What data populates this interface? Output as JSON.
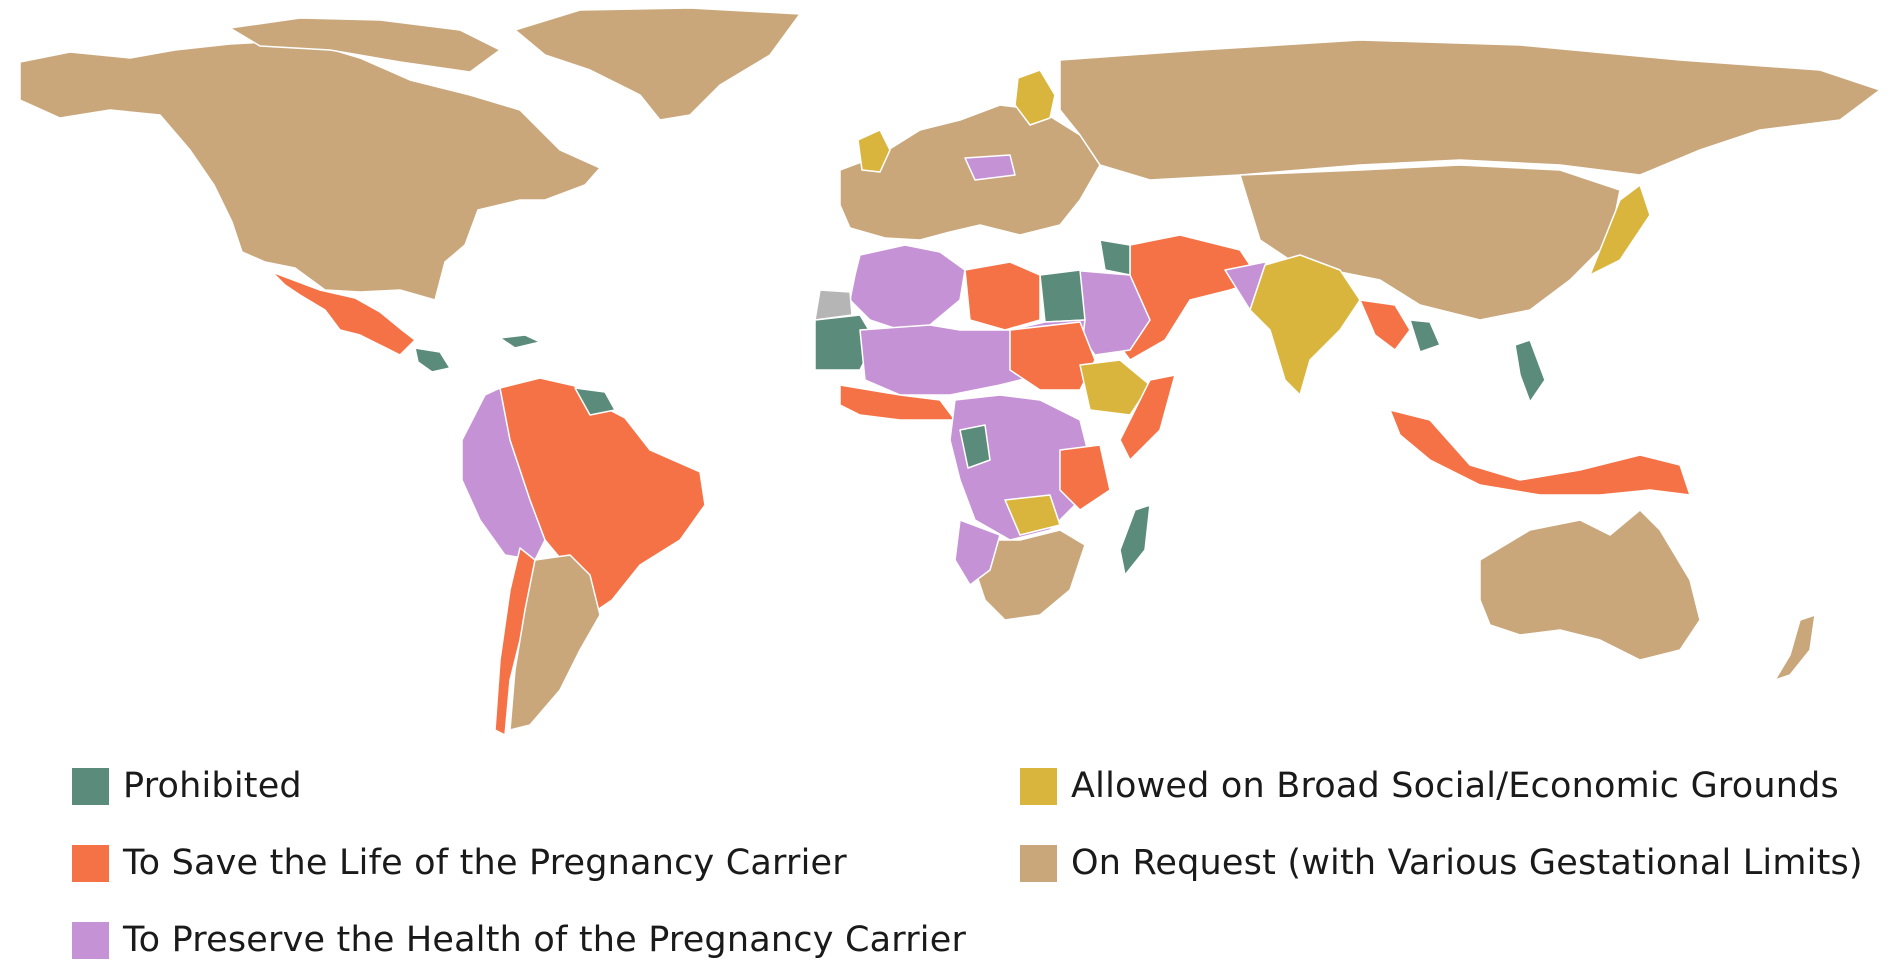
{
  "colors": {
    "ocean": "#ffffff",
    "border": "#ffffff",
    "prohibited": "#5b8c7b",
    "life": "#f47246",
    "health": "#c692d6",
    "social_economic": "#d9b53e",
    "on_request": "#c9a77b",
    "no_data": "#b5b5b5"
  },
  "legend": [
    {
      "key": "prohibited",
      "label": "Prohibited",
      "icon": "square-swatch"
    },
    {
      "key": "life",
      "label": "To Save the Life of the Pregnancy Carrier",
      "icon": "square-swatch"
    },
    {
      "key": "health",
      "label": "To Preserve the Health of the Pregnancy Carrier",
      "icon": "square-swatch"
    },
    {
      "key": "social_economic",
      "label": "Allowed on Broad Social/Economic Grounds",
      "icon": "square-swatch"
    },
    {
      "key": "on_request",
      "label": "On Request (with Various Gestational Limits)",
      "icon": "square-swatch"
    }
  ]
}
